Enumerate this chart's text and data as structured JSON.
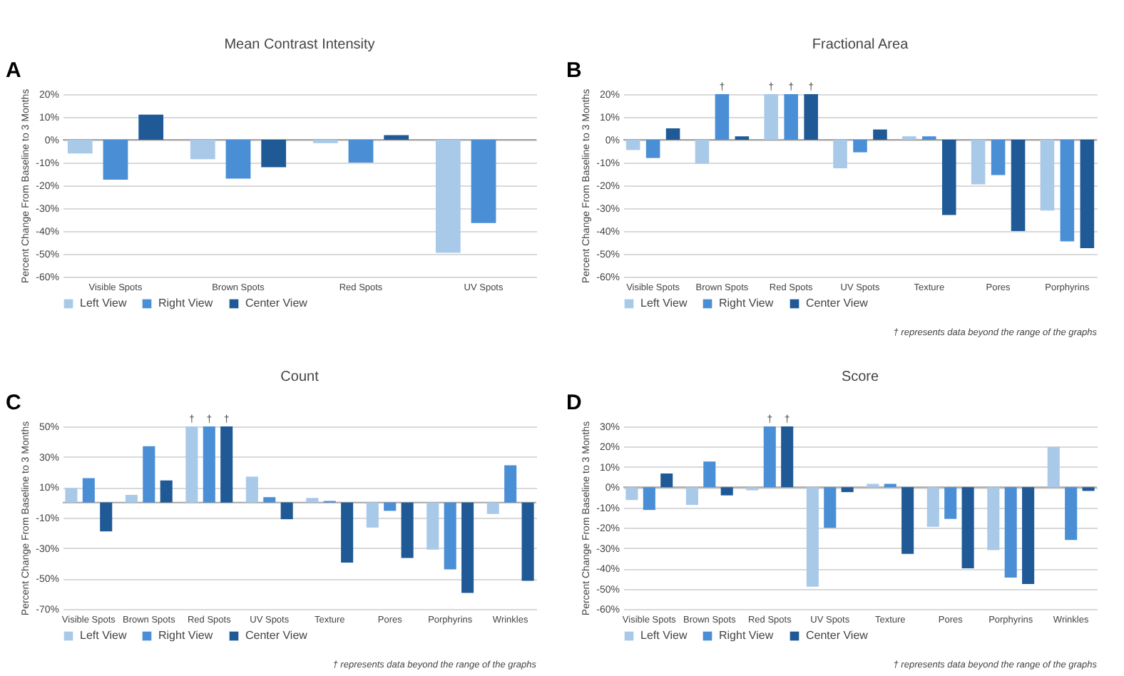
{
  "chart_data": [
    {
      "type": "bar",
      "title": "Mean Contrast Intensity",
      "ylabel": "Percent Change From Baseline to 3 Months",
      "annotations": [
        "A"
      ],
      "categories": [
        "Visible Spots",
        "Brown Spots",
        "Red Spots",
        "UV Spots"
      ],
      "series": [
        {
          "name": "Left View",
          "color": "#a9c9e9",
          "values": [
            -6,
            -8.5,
            -1.5,
            -49.5
          ]
        },
        {
          "name": "Right View",
          "color": "#4a8fd6",
          "values": [
            -17.5,
            -17,
            -10,
            -36.5
          ]
        },
        {
          "name": "Center View",
          "color": "#1f5a96",
          "values": [
            11,
            -12,
            2,
            0
          ]
        }
      ],
      "ylim": [
        -60,
        20
      ],
      "yticks": [
        {
          "value": -60,
          "label": "-60%"
        },
        {
          "value": -50,
          "label": "-50%"
        },
        {
          "value": -40,
          "label": "-40%"
        },
        {
          "value": -30,
          "label": "-30%"
        },
        {
          "value": -20,
          "label": "-20%"
        },
        {
          "value": -10,
          "label": "-10%"
        },
        {
          "value": 0,
          "label": "0%"
        },
        {
          "value": 10,
          "label": "10%"
        },
        {
          "value": 20,
          "label": "20%"
        }
      ],
      "grid": "y",
      "legend": "bottom"
    },
    {
      "type": "bar",
      "title": "Fractional Area",
      "ylabel": "Percent Change From Baseline to 3 Months",
      "annotations": [
        "B",
        "† represents data beyond the range of the graphs"
      ],
      "categories": [
        "Visible Spots",
        "Brown Spots",
        "Red Spots",
        "UV Spots",
        "Texture",
        "Pores",
        "Porphyrins"
      ],
      "series": [
        {
          "name": "Left View",
          "color": "#a9c9e9",
          "values": [
            -4.5,
            -10.5,
            20,
            -12.5,
            1.5,
            -19.5,
            -31
          ],
          "value_labels": [
            null,
            null,
            "†",
            null,
            null,
            null,
            null
          ]
        },
        {
          "name": "Right View",
          "color": "#4a8fd6",
          "values": [
            -8,
            20,
            20,
            -5.5,
            1.5,
            -15.5,
            -44.5
          ],
          "value_labels": [
            null,
            "†",
            "†",
            null,
            null,
            null,
            null
          ]
        },
        {
          "name": "Center View",
          "color": "#1f5a96",
          "values": [
            5,
            1.5,
            20,
            4.5,
            -33,
            -40,
            -47.5
          ],
          "value_labels": [
            null,
            null,
            "†",
            null,
            null,
            null,
            null
          ]
        }
      ],
      "ylim": [
        -60,
        20
      ],
      "yticks": [
        {
          "value": -60,
          "label": "-60%"
        },
        {
          "value": -50,
          "label": "-50%"
        },
        {
          "value": -40,
          "label": "-40%"
        },
        {
          "value": -30,
          "label": "-30%"
        },
        {
          "value": -20,
          "label": "-20%"
        },
        {
          "value": -10,
          "label": "-10%"
        },
        {
          "value": 0,
          "label": "0%"
        },
        {
          "value": 10,
          "label": "10%"
        },
        {
          "value": 20,
          "label": "20%"
        }
      ],
      "grid": "y",
      "legend": "bottom"
    },
    {
      "type": "bar",
      "title": "Count",
      "ylabel": "Percent Change From Baseline to 3 Months",
      "annotations": [
        "C",
        "† represents data beyond the range of the graphs"
      ],
      "categories": [
        "Visible Spots",
        "Brown Spots",
        "Red Spots",
        "UV Spots",
        "Texture",
        "Pores",
        "Porphyrins",
        "Wrinkles"
      ],
      "series": [
        {
          "name": "Left View",
          "color": "#a9c9e9",
          "values": [
            9.5,
            5,
            50,
            17,
            3,
            -16.5,
            -31,
            -7.5
          ],
          "value_labels": [
            null,
            null,
            "†",
            null,
            null,
            null,
            null,
            null
          ]
        },
        {
          "name": "Right View",
          "color": "#4a8fd6",
          "values": [
            16,
            37,
            50,
            3.5,
            1,
            -5.5,
            -44,
            24.5
          ],
          "value_labels": [
            null,
            null,
            "†",
            null,
            null,
            null,
            null,
            null
          ]
        },
        {
          "name": "Center View",
          "color": "#1f5a96",
          "values": [
            -19,
            14.5,
            50,
            -11,
            -39.5,
            -36.5,
            -59.5,
            -51.5
          ],
          "value_labels": [
            null,
            null,
            "†",
            null,
            null,
            null,
            null,
            null
          ]
        }
      ],
      "ylim": [
        -70,
        50
      ],
      "yticks": [
        {
          "value": -70,
          "label": "-70%"
        },
        {
          "value": -50,
          "label": "-50%"
        },
        {
          "value": -30,
          "label": "-30%"
        },
        {
          "value": -10,
          "label": "-10%"
        },
        {
          "value": 10,
          "label": "10%"
        },
        {
          "value": 30,
          "label": "30%"
        },
        {
          "value": 50,
          "label": "50%"
        }
      ],
      "grid": "y",
      "legend": "bottom"
    },
    {
      "type": "bar",
      "title": "Score",
      "ylabel": "Percent Change From Baseline to 3 Months",
      "annotations": [
        "D",
        "† represents data beyond the range of the graphs"
      ],
      "categories": [
        "Visible Spots",
        "Brown Spots",
        "Red Spots",
        "UV Spots",
        "Texture",
        "Pores",
        "Porphyrins",
        "Wrinkles"
      ],
      "series": [
        {
          "name": "Left View",
          "color": "#a9c9e9",
          "values": [
            -6.3,
            -8.7,
            -1.5,
            -49,
            1.7,
            -19.5,
            -31,
            20
          ]
        },
        {
          "name": "Right View",
          "color": "#4a8fd6",
          "values": [
            -11.2,
            12.7,
            30,
            -20,
            1.7,
            -15.6,
            -44.5,
            -26
          ],
          "value_labels": [
            null,
            null,
            "†",
            null,
            null,
            null,
            null,
            null
          ]
        },
        {
          "name": "Center View",
          "color": "#1f5a96",
          "values": [
            6.8,
            -4,
            30,
            -2.4,
            -32.8,
            -40,
            -47.7,
            -1.8
          ],
          "value_labels": [
            null,
            null,
            "†",
            null,
            null,
            null,
            null,
            null
          ]
        }
      ],
      "ylim": [
        -60,
        30
      ],
      "yticks": [
        {
          "value": -60,
          "label": "-60%"
        },
        {
          "value": -50,
          "label": "-50%"
        },
        {
          "value": -40,
          "label": "-40%"
        },
        {
          "value": -30,
          "label": "-30%"
        },
        {
          "value": -20,
          "label": "-20%"
        },
        {
          "value": -10,
          "label": "-10%"
        },
        {
          "value": 0,
          "label": "0%"
        },
        {
          "value": 10,
          "label": "10%"
        },
        {
          "value": 20,
          "label": "20%"
        },
        {
          "value": 30,
          "label": "30%"
        }
      ],
      "grid": "y",
      "legend": "bottom"
    }
  ]
}
